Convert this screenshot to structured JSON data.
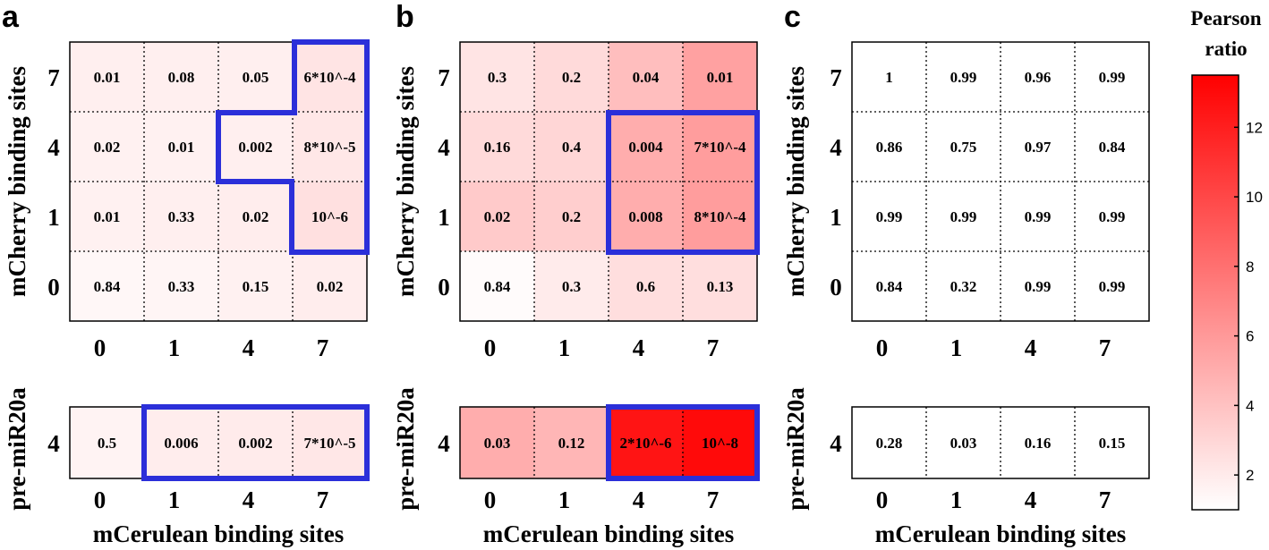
{
  "chart_data": [
    {
      "type": "heatmap",
      "panel": "a",
      "xlabel": "mCerulean binding sites",
      "ylabel_main": "mCherry binding sites",
      "ylabel_bottom": "pre-miR20a",
      "x_categories": [
        "0",
        "1",
        "4",
        "7"
      ],
      "y_categories_main": [
        "7",
        "4",
        "1",
        "0"
      ],
      "y_categories_bottom": [
        "4"
      ],
      "main_labels": [
        [
          "0.01",
          "0.08",
          "0.05",
          "6*10^-4"
        ],
        [
          "0.02",
          "0.01",
          "0.002",
          "8*10^-5"
        ],
        [
          "0.01",
          "0.33",
          "0.02",
          "10^-6"
        ],
        [
          "0.84",
          "0.33",
          "0.15",
          "0.02"
        ]
      ],
      "main_ratio": [
        [
          1.8,
          1.8,
          1.8,
          2.3
        ],
        [
          1.7,
          1.7,
          1.8,
          2.2
        ],
        [
          1.7,
          1.8,
          1.9,
          2.5
        ],
        [
          1.4,
          1.5,
          1.7,
          1.9
        ]
      ],
      "bottom_labels": [
        [
          "0.5",
          "0.006",
          "0.002",
          "7*10^-5"
        ]
      ],
      "bottom_ratio": [
        [
          1.6,
          1.9,
          2.0,
          2.2
        ]
      ]
    },
    {
      "type": "heatmap",
      "panel": "b",
      "xlabel": "mCerulean binding sites",
      "ylabel_main": "mCherry binding sites",
      "ylabel_bottom": "pre-miR20a",
      "x_categories": [
        "0",
        "1",
        "4",
        "7"
      ],
      "y_categories_main": [
        "7",
        "4",
        "1",
        "0"
      ],
      "y_categories_bottom": [
        "4"
      ],
      "main_labels": [
        [
          "0.3",
          "0.2",
          "0.04",
          "0.01"
        ],
        [
          "0.16",
          "0.4",
          "0.004",
          "7*10^-4"
        ],
        [
          "0.02",
          "0.2",
          "0.008",
          "8*10^-4"
        ],
        [
          "0.84",
          "0.3",
          "0.6",
          "0.13"
        ]
      ],
      "main_ratio": [
        [
          2.3,
          2.8,
          4.2,
          5.6
        ],
        [
          2.8,
          3.0,
          5.0,
          5.8
        ],
        [
          3.6,
          3.4,
          5.0,
          5.8
        ],
        [
          1.2,
          2.0,
          2.6,
          2.6
        ]
      ],
      "bottom_labels": [
        [
          "0.03",
          "0.12",
          "2*10^-6",
          "10^-8"
        ]
      ],
      "bottom_ratio": [
        [
          5.0,
          4.6,
          12.5,
          13.0
        ]
      ]
    },
    {
      "type": "heatmap",
      "panel": "c",
      "xlabel": "mCerulean binding sites",
      "ylabel_main": "mCherry binding sites",
      "ylabel_bottom": "pre-miR20a",
      "x_categories": [
        "0",
        "1",
        "4",
        "7"
      ],
      "y_categories_main": [
        "7",
        "4",
        "1",
        "0"
      ],
      "y_categories_bottom": [
        "4"
      ],
      "main_labels": [
        [
          "1",
          "0.99",
          "0.96",
          "0.99"
        ],
        [
          "0.86",
          "0.75",
          "0.97",
          "0.84"
        ],
        [
          "0.99",
          "0.99",
          "0.99",
          "0.99"
        ],
        [
          "0.84",
          "0.32",
          "0.99",
          "0.99"
        ]
      ],
      "main_ratio": [
        [
          1.0,
          1.0,
          1.0,
          1.0
        ],
        [
          1.0,
          1.0,
          1.0,
          1.0
        ],
        [
          1.0,
          1.0,
          1.0,
          1.0
        ],
        [
          1.0,
          1.0,
          1.0,
          1.0
        ]
      ],
      "bottom_labels": [
        [
          "0.28",
          "0.03",
          "0.16",
          "0.15"
        ]
      ],
      "bottom_ratio": [
        [
          1.0,
          1.0,
          1.0,
          1.0
        ]
      ]
    }
  ],
  "colorbar": {
    "title_lines": [
      "Pearson",
      "ratio"
    ],
    "min": 1,
    "max": 13.5,
    "ticks": [
      "2",
      "4",
      "6",
      "8",
      "10",
      "12"
    ],
    "color_low": "#ffffff",
    "color_high": "#ff0000"
  },
  "highlight_color": "#2b2fd9"
}
